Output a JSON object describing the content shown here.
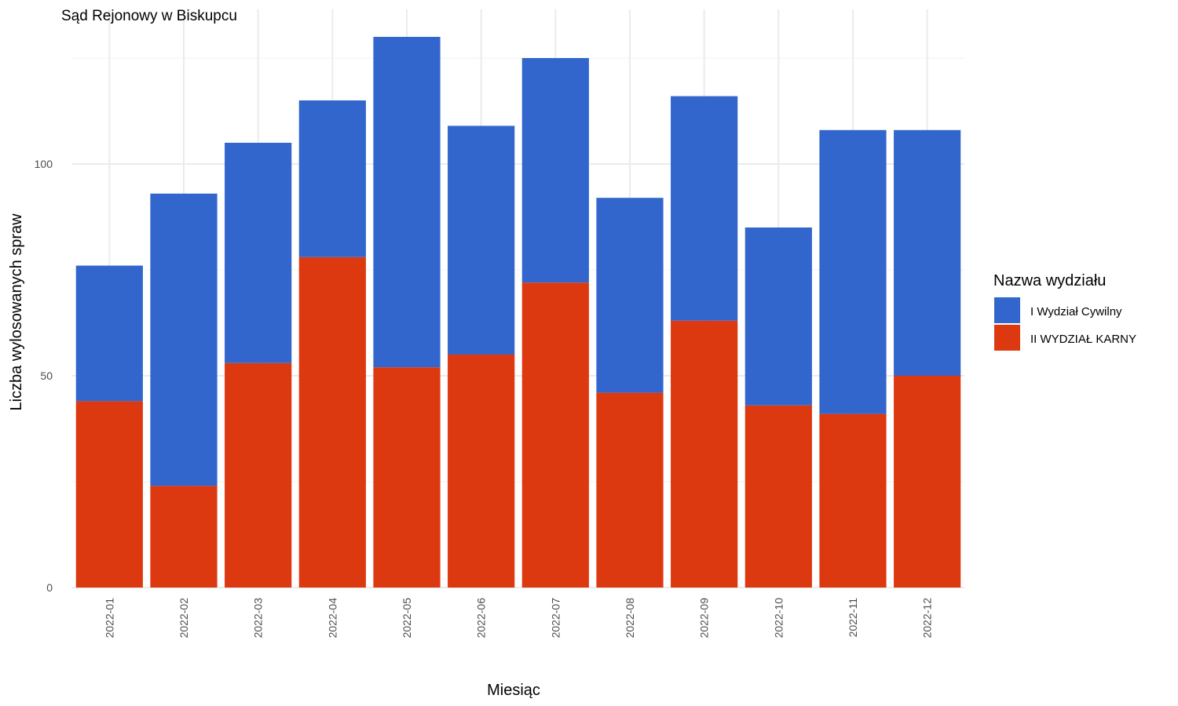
{
  "chart_data": {
    "type": "bar",
    "stacked": true,
    "title": "Sąd Rejonowy w Biskupcu",
    "xlabel": "Miesiąc",
    "ylabel": "Liczba wylosowanych spraw",
    "categories": [
      "2022-01",
      "2022-02",
      "2022-03",
      "2022-04",
      "2022-05",
      "2022-06",
      "2022-07",
      "2022-08",
      "2022-09",
      "2022-10",
      "2022-11",
      "2022-12"
    ],
    "series": [
      {
        "name": "II WYDZIAŁ KARNY",
        "color": "#dd3911",
        "values": [
          44,
          24,
          53,
          78,
          52,
          55,
          72,
          46,
          63,
          43,
          41,
          50
        ]
      },
      {
        "name": "I Wydział Cywilny",
        "color": "#3366cc",
        "values": [
          32,
          69,
          52,
          37,
          78,
          54,
          53,
          46,
          53,
          42,
          67,
          58
        ]
      }
    ],
    "yticks": [
      0,
      50,
      100
    ],
    "ylim": [
      0,
      136
    ],
    "grid": true,
    "legend": {
      "title": "Nazwa wydziału",
      "position": "right",
      "order": [
        "I Wydział Cywilny",
        "II WYDZIAŁ KARNY"
      ]
    }
  }
}
